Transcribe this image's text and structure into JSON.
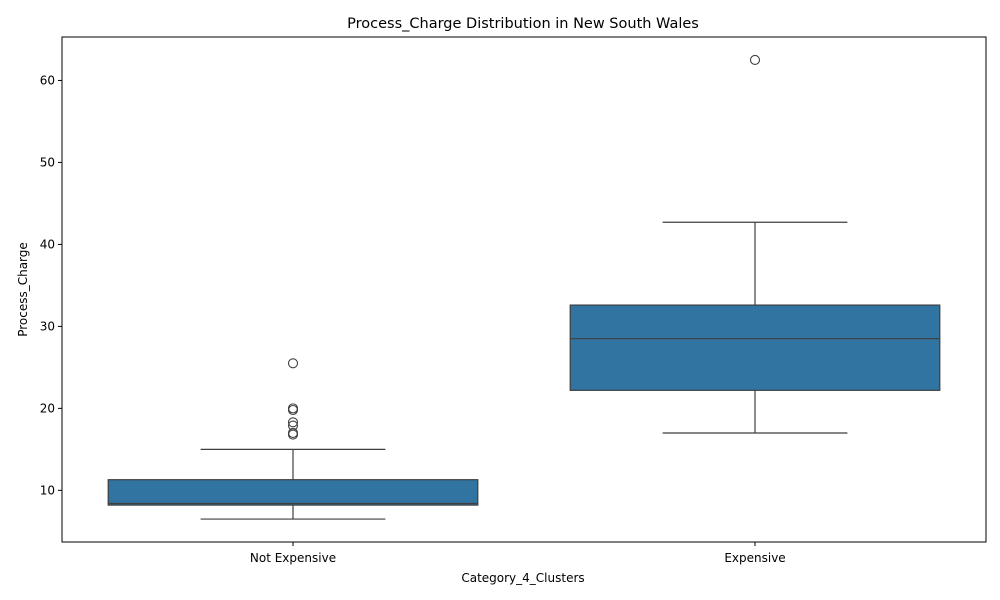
{
  "chart_data": {
    "type": "box",
    "title": "Process_Charge Distribution in New South Wales",
    "xlabel": "Category_4_Clusters",
    "ylabel": "Process_Charge",
    "categories": [
      "Not Expensive",
      "Expensive"
    ],
    "ylim": [
      3.7,
      65.3
    ],
    "yticks": [
      10,
      20,
      30,
      40,
      50,
      60
    ],
    "box_color": "#3274a1",
    "line_color": "#3f3f3f",
    "boxes": [
      {
        "category": "Not Expensive",
        "whisker_low": 6.5,
        "q1": 8.2,
        "median": 8.4,
        "q3": 11.3,
        "whisker_high": 15.0,
        "outliers": [
          16.8,
          17.0,
          17.9,
          18.3,
          19.8,
          20.0,
          25.5
        ]
      },
      {
        "category": "Expensive",
        "whisker_low": 17.0,
        "q1": 22.2,
        "median": 28.5,
        "q3": 32.6,
        "whisker_high": 42.7,
        "outliers": [
          62.5
        ]
      }
    ]
  }
}
